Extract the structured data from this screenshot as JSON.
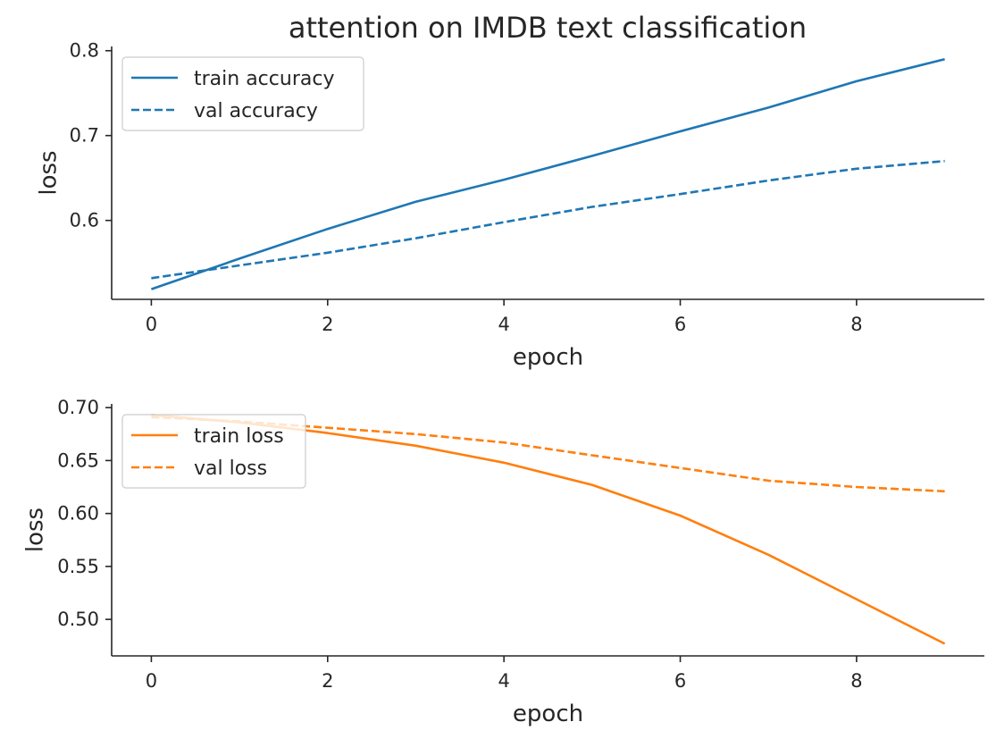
{
  "title": "attention on IMDB text classification",
  "colors": {
    "blue": "#1f77b4",
    "orange": "#ff7f0e"
  },
  "chart_data": [
    {
      "type": "line",
      "title": "attention on IMDB text classification",
      "xlabel": "epoch",
      "ylabel": "loss",
      "xlim": [
        -0.45,
        9.45
      ],
      "ylim": [
        0.507,
        0.805
      ],
      "xticks": [
        "0",
        "2",
        "4",
        "6",
        "8"
      ],
      "yticks": [
        "0.6",
        "0.7",
        "0.8"
      ],
      "legend_location": "upper-left",
      "grid": false,
      "x": [
        0,
        1,
        2,
        3,
        4,
        5,
        6,
        7,
        8,
        9
      ],
      "series": [
        {
          "name": "train accuracy",
          "linestyle": "solid",
          "color": "#1f77b4",
          "values": [
            0.519,
            0.555,
            0.59,
            0.622,
            0.648,
            0.676,
            0.705,
            0.733,
            0.764,
            0.79
          ]
        },
        {
          "name": "val accuracy",
          "linestyle": "dashed",
          "color": "#1f77b4",
          "values": [
            0.532,
            0.547,
            0.562,
            0.579,
            0.598,
            0.616,
            0.631,
            0.647,
            0.661,
            0.67
          ]
        }
      ]
    },
    {
      "type": "line",
      "xlabel": "epoch",
      "ylabel": "loss",
      "xlim": [
        -0.45,
        9.45
      ],
      "ylim": [
        0.4655,
        0.7035
      ],
      "xticks": [
        "0",
        "2",
        "4",
        "6",
        "8"
      ],
      "yticks": [
        "0.50",
        "0.55",
        "0.60",
        "0.65",
        "0.70"
      ],
      "legend_location": "upper-left",
      "grid": false,
      "x": [
        0,
        1,
        2,
        3,
        4,
        5,
        6,
        7,
        8,
        9
      ],
      "series": [
        {
          "name": "train loss",
          "linestyle": "solid",
          "color": "#ff7f0e",
          "values": [
            0.693,
            0.686,
            0.676,
            0.664,
            0.648,
            0.627,
            0.598,
            0.561,
            0.519,
            0.477
          ]
        },
        {
          "name": "val loss",
          "linestyle": "dashed",
          "color": "#ff7f0e",
          "values": [
            0.691,
            0.687,
            0.681,
            0.675,
            0.667,
            0.655,
            0.643,
            0.631,
            0.625,
            0.621
          ]
        }
      ]
    }
  ]
}
